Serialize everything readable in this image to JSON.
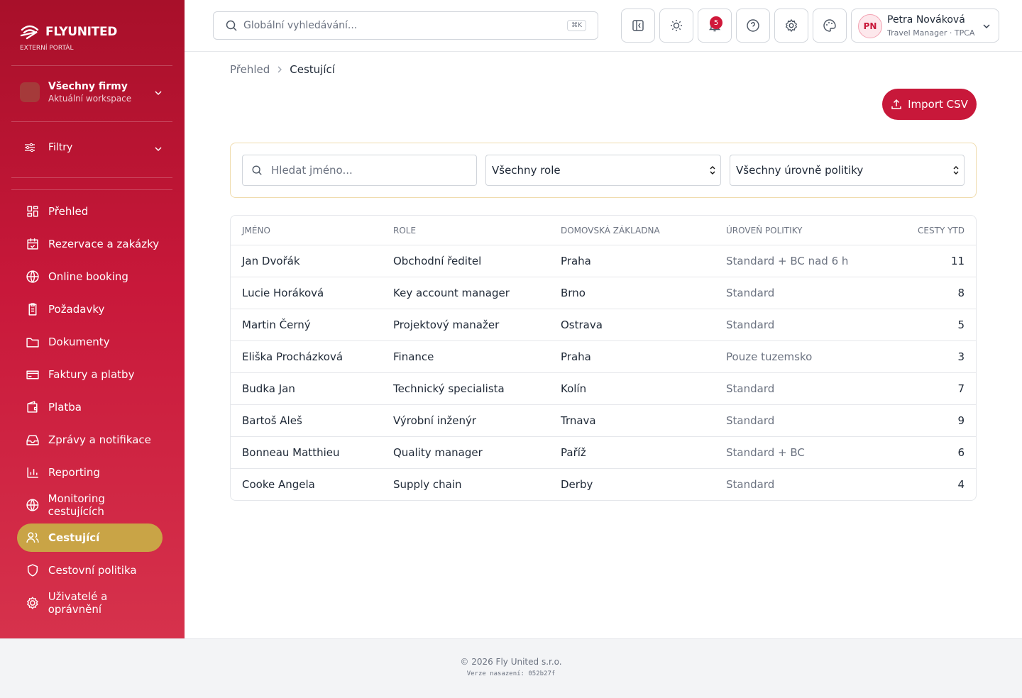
{
  "sidebar": {
    "brand": "FLYUNITED",
    "subtitle": "EXTERNÍ PORTÁL",
    "workspace": {
      "name": "Všechny firmy",
      "caption": "Aktuální workspace"
    },
    "filters": "Filtry",
    "nav": [
      "Přehled",
      "Rezervace a zakázky",
      "Online booking",
      "Požadavky",
      "Dokumenty",
      "Faktury a platby",
      "Platba",
      "Zprávy a notifikace",
      "Reporting",
      "Monitoring cestujících",
      "Cestující",
      "Cestovní politika",
      "Uživatelé a oprávnění"
    ]
  },
  "topbar": {
    "search_placeholder": "Globální vyhledávání...",
    "shortcut": "⌘K",
    "notifications": "5",
    "user": {
      "initials": "PN",
      "name": "Petra Nováková",
      "role": "Travel Manager · TPCA"
    }
  },
  "breadcrumb": [
    "Přehled",
    "Cestující"
  ],
  "import_button": "Import CSV",
  "filters": {
    "search_placeholder": "Hledat jméno...",
    "role": "Všechny role",
    "policy": "Všechny úrovně politiky"
  },
  "table": {
    "columns": [
      "JMÉNO",
      "ROLE",
      "DOMOVSKÁ ZÁKLADNA",
      "ÚROVEŇ POLITIKY",
      "CESTY YTD"
    ],
    "rows": [
      [
        "Jan Dvořák",
        "Obchodní ředitel",
        "Praha",
        "Standard + BC nad 6 h",
        "11"
      ],
      [
        "Lucie Horáková",
        "Key account manager",
        "Brno",
        "Standard",
        "8"
      ],
      [
        "Martin Černý",
        "Projektový manažer",
        "Ostrava",
        "Standard",
        "5"
      ],
      [
        "Eliška Procházková",
        "Finance",
        "Praha",
        "Pouze tuzemsko",
        "3"
      ],
      [
        "Budka Jan",
        "Technický specialista",
        "Kolín",
        "Standard",
        "7"
      ],
      [
        "Bartoš Aleš",
        "Výrobní inženýr",
        "Trnava",
        "Standard",
        "9"
      ],
      [
        "Bonneau Matthieu",
        "Quality manager",
        "Paříž",
        "Standard + BC",
        "6"
      ],
      [
        "Cooke Angela",
        "Supply chain",
        "Derby",
        "Standard",
        "4"
      ]
    ]
  },
  "footer": {
    "copyright": "© 2026 Fly United s.r.o.",
    "version": "Verze nasazení: 052b27f"
  }
}
